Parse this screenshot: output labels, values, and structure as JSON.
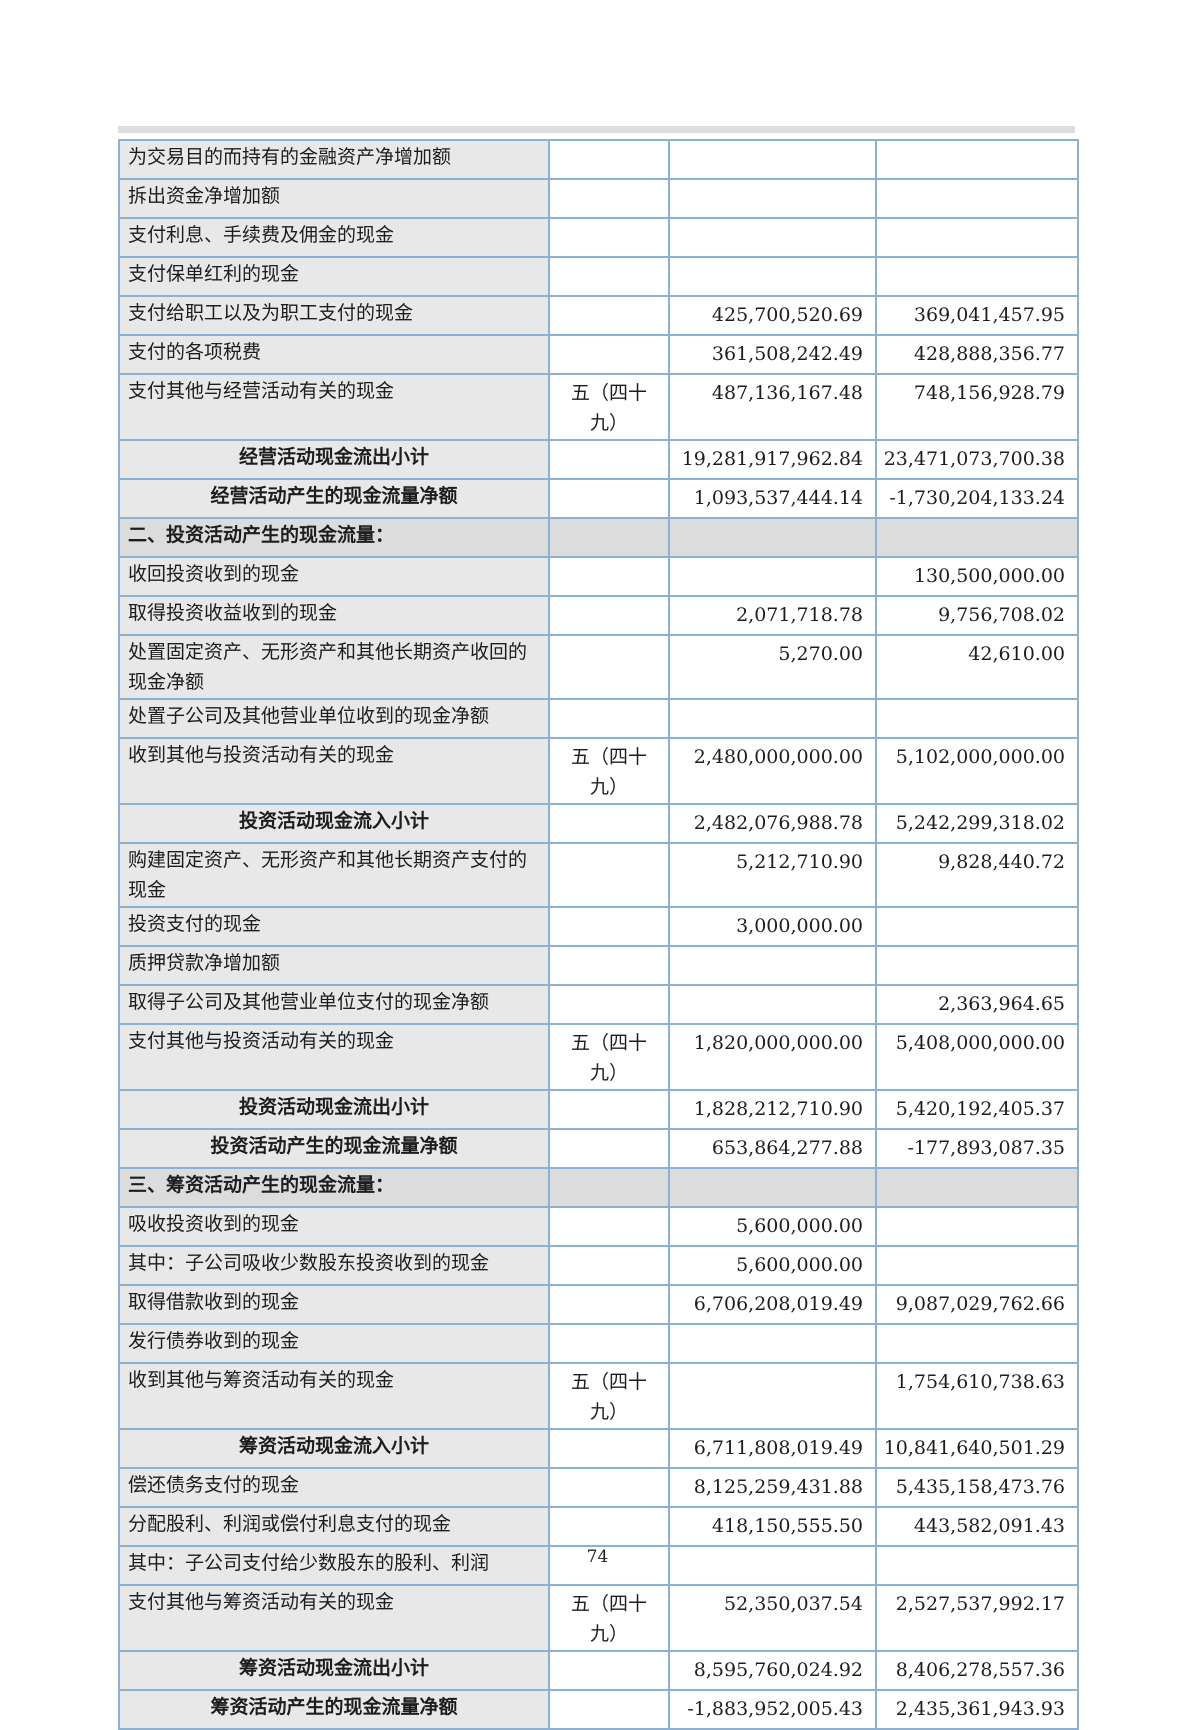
{
  "page": {
    "number": "74"
  },
  "table": {
    "columns": [
      "item",
      "note",
      "amount_current_period",
      "amount_prior_period"
    ],
    "note_reference": "五（四十九）",
    "rows": [
      {
        "type": "item",
        "label": "为交易目的而持有的金融资产净增加额",
        "note": "",
        "current": "",
        "prior": ""
      },
      {
        "type": "item",
        "label": "拆出资金净增加额",
        "note": "",
        "current": "",
        "prior": ""
      },
      {
        "type": "item",
        "label": "支付利息、手续费及佣金的现金",
        "note": "",
        "current": "",
        "prior": ""
      },
      {
        "type": "item",
        "label": "支付保单红利的现金",
        "note": "",
        "current": "",
        "prior": ""
      },
      {
        "type": "item",
        "label": "支付给职工以及为职工支付的现金",
        "note": "",
        "current": "425,700,520.69",
        "prior": "369,041,457.95"
      },
      {
        "type": "item",
        "label": "支付的各项税费",
        "note": "",
        "current": "361,508,242.49",
        "prior": "428,888,356.77"
      },
      {
        "type": "item",
        "label": "支付其他与经营活动有关的现金",
        "note": "五（四十九）",
        "current": "487,136,167.48",
        "prior": "748,156,928.79"
      },
      {
        "type": "subtotal",
        "label": "经营活动现金流出小计",
        "note": "",
        "current": "19,281,917,962.84",
        "prior": "23,471,073,700.38"
      },
      {
        "type": "subtotal",
        "label": "经营活动产生的现金流量净额",
        "note": "",
        "current": "1,093,537,444.14",
        "prior": "-1,730,204,133.24"
      },
      {
        "type": "section",
        "label": "二、投资活动产生的现金流量：",
        "note": "",
        "current": "",
        "prior": ""
      },
      {
        "type": "item",
        "label": "收回投资收到的现金",
        "note": "",
        "current": "",
        "prior": "130,500,000.00"
      },
      {
        "type": "item",
        "label": "取得投资收益收到的现金",
        "note": "",
        "current": "2,071,718.78",
        "prior": "9,756,708.02"
      },
      {
        "type": "item",
        "label": "处置固定资产、无形资产和其他长期资产收回的现金净额",
        "note": "",
        "current": "5,270.00",
        "prior": "42,610.00"
      },
      {
        "type": "item",
        "label": "处置子公司及其他营业单位收到的现金净额",
        "note": "",
        "current": "",
        "prior": ""
      },
      {
        "type": "item",
        "label": "收到其他与投资活动有关的现金",
        "note": "五（四十九）",
        "current": "2,480,000,000.00",
        "prior": "5,102,000,000.00"
      },
      {
        "type": "subtotal",
        "label": "投资活动现金流入小计",
        "note": "",
        "current": "2,482,076,988.78",
        "prior": "5,242,299,318.02"
      },
      {
        "type": "item",
        "label": "购建固定资产、无形资产和其他长期资产支付的现金",
        "note": "",
        "current": "5,212,710.90",
        "prior": "9,828,440.72"
      },
      {
        "type": "item",
        "label": "投资支付的现金",
        "note": "",
        "current": "3,000,000.00",
        "prior": ""
      },
      {
        "type": "item",
        "label": "质押贷款净增加额",
        "note": "",
        "current": "",
        "prior": ""
      },
      {
        "type": "item",
        "label": "取得子公司及其他营业单位支付的现金净额",
        "note": "",
        "current": "",
        "prior": "2,363,964.65"
      },
      {
        "type": "item",
        "label": "支付其他与投资活动有关的现金",
        "note": "五（四十九）",
        "current": "1,820,000,000.00",
        "prior": "5,408,000,000.00"
      },
      {
        "type": "subtotal",
        "label": "投资活动现金流出小计",
        "note": "",
        "current": "1,828,212,710.90",
        "prior": "5,420,192,405.37"
      },
      {
        "type": "subtotal",
        "label": "投资活动产生的现金流量净额",
        "note": "",
        "current": "653,864,277.88",
        "prior": "-177,893,087.35"
      },
      {
        "type": "section",
        "label": "三、筹资活动产生的现金流量：",
        "note": "",
        "current": "",
        "prior": ""
      },
      {
        "type": "item",
        "label": "吸收投资收到的现金",
        "note": "",
        "current": "5,600,000.00",
        "prior": ""
      },
      {
        "type": "item",
        "label": "其中：子公司吸收少数股东投资收到的现金",
        "note": "",
        "current": "5,600,000.00",
        "prior": ""
      },
      {
        "type": "item",
        "label": "取得借款收到的现金",
        "note": "",
        "current": "6,706,208,019.49",
        "prior": "9,087,029,762.66"
      },
      {
        "type": "item",
        "label": "发行债券收到的现金",
        "note": "",
        "current": "",
        "prior": ""
      },
      {
        "type": "item",
        "label": "收到其他与筹资活动有关的现金",
        "note": "五（四十九）",
        "current": "",
        "prior": "1,754,610,738.63"
      },
      {
        "type": "subtotal",
        "label": "筹资活动现金流入小计",
        "note": "",
        "current": "6,711,808,019.49",
        "prior": "10,841,640,501.29"
      },
      {
        "type": "item",
        "label": "偿还债务支付的现金",
        "note": "",
        "current": "8,125,259,431.88",
        "prior": "5,435,158,473.76"
      },
      {
        "type": "item",
        "label": "分配股利、利润或偿付利息支付的现金",
        "note": "",
        "current": "418,150,555.50",
        "prior": "443,582,091.43"
      },
      {
        "type": "item",
        "label": "其中：子公司支付给少数股东的股利、利润",
        "note": "",
        "current": "",
        "prior": ""
      },
      {
        "type": "item",
        "label": "支付其他与筹资活动有关的现金",
        "note": "五（四十九）",
        "current": "52,350,037.54",
        "prior": "2,527,537,992.17"
      },
      {
        "type": "subtotal",
        "label": "筹资活动现金流出小计",
        "note": "",
        "current": "8,595,760,024.92",
        "prior": "8,406,278,557.36"
      },
      {
        "type": "subtotal",
        "label": "筹资活动产生的现金流量净额",
        "note": "",
        "current": "-1,883,952,005.43",
        "prior": "2,435,361,943.93"
      }
    ],
    "colors": {
      "border": "#8db1d2",
      "label_cell_bg": "#e8e8e8",
      "section_row_bg": "#dcdcdc"
    }
  }
}
